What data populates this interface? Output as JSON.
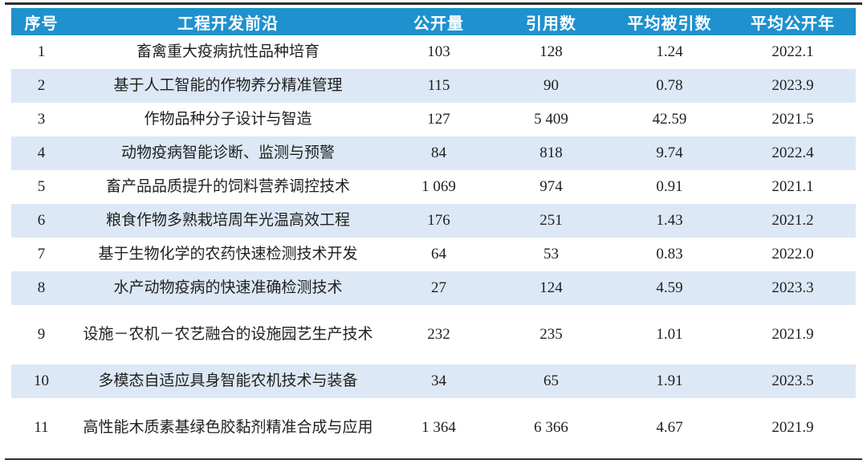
{
  "table": {
    "colors": {
      "header_bg": "#1f91ce",
      "header_text": "#ffffff",
      "stripe_bg": "#dce8f6",
      "row_bg": "#ffffff",
      "rule": "#2b2e33",
      "body_text": "#1f1f1f"
    },
    "columns": [
      {
        "label": "序号"
      },
      {
        "label": "工程开发前沿"
      },
      {
        "label": "公开量"
      },
      {
        "label": "引用数"
      },
      {
        "label": "平均被引数"
      },
      {
        "label": "平均公开年"
      }
    ],
    "rows": [
      [
        "1",
        "畜禽重大疫病抗性品种培育",
        "103",
        "128",
        "1.24",
        "2022.1"
      ],
      [
        "2",
        "基于人工智能的作物养分精准管理",
        "115",
        "90",
        "0.78",
        "2023.9"
      ],
      [
        "3",
        "作物品种分子设计与智造",
        "127",
        "5 409",
        "42.59",
        "2021.5"
      ],
      [
        "4",
        "动物疫病智能诊断、监测与预警",
        "84",
        "818",
        "9.74",
        "2022.4"
      ],
      [
        "5",
        "畜产品品质提升的饲料营养调控技术",
        "1 069",
        "974",
        "0.91",
        "2021.1"
      ],
      [
        "6",
        "粮食作物多熟栽培周年光温高效工程",
        "176",
        "251",
        "1.43",
        "2021.2"
      ],
      [
        "7",
        "基于生物化学的农药快速检测技术开发",
        "64",
        "53",
        "0.83",
        "2022.0"
      ],
      [
        "8",
        "水产动物疫病的快速准确检测技术",
        "27",
        "124",
        "4.59",
        "2023.3"
      ],
      [
        "9",
        "设施－农机－农艺融合的设施园艺生产技术",
        "232",
        "235",
        "1.01",
        "2021.9"
      ],
      [
        "10",
        "多模态自适应具身智能农机技术与装备",
        "34",
        "65",
        "1.91",
        "2023.5"
      ],
      [
        "11",
        "高性能木质素基绿色胶黏剂精准合成与应用",
        "1 364",
        "6 366",
        "4.67",
        "2021.9"
      ]
    ]
  }
}
